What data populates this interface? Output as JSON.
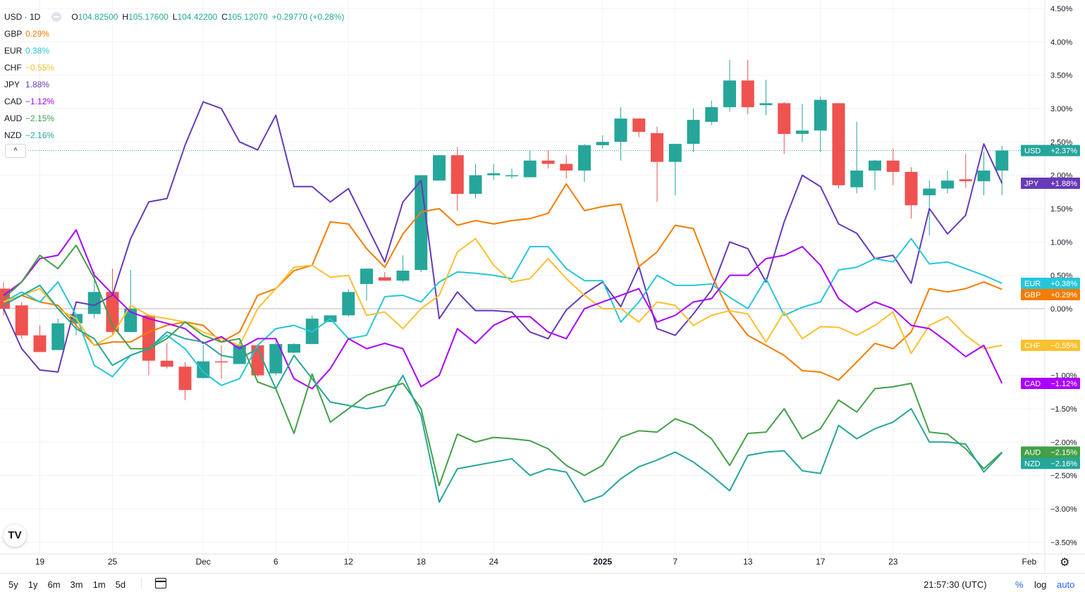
{
  "header": {
    "symbol": "USD · 1D",
    "ohlc": [
      {
        "k": "O",
        "v": "104.82500"
      },
      {
        "k": "H",
        "v": "105.17600"
      },
      {
        "k": "L",
        "v": "104.42200"
      },
      {
        "k": "C",
        "v": "105.12070"
      }
    ],
    "change": "+0.29770 (+0.28%)",
    "change_color": "#22ab94"
  },
  "compare": [
    {
      "name": "GBP",
      "value": "0.29%",
      "color": "#f57c00"
    },
    {
      "name": "EUR",
      "value": "0.38%",
      "color": "#26c6da"
    },
    {
      "name": "CHF",
      "value": "−0.55%",
      "color": "#fbc02d"
    },
    {
      "name": "JPY",
      "value": "1.88%",
      "color": "#673ab7"
    },
    {
      "name": "CAD",
      "value": "−1.12%",
      "color": "#aa00ff"
    },
    {
      "name": "AUD",
      "value": "−2.15%",
      "color": "#43a047"
    },
    {
      "name": "NZD",
      "value": "−2.16%",
      "color": "#26a69a"
    }
  ],
  "bottom_bar": {
    "ranges": [
      "5y",
      "1y",
      "6m",
      "3m",
      "1m",
      "5d"
    ],
    "time": "21:57:30 (UTC)",
    "pct": "%",
    "log": "log",
    "auto": "auto",
    "logo": "TV",
    "collapse": "^"
  },
  "chart_data": {
    "type": "candlestick",
    "xlabel": "",
    "ylabel": "",
    "y_axis_ticks": [
      "4.50%",
      "4.00%",
      "3.50%",
      "3.00%",
      "2.50%",
      "2.00%",
      "1.50%",
      "1.00%",
      "0.50%",
      "0.00%",
      "−0.50%",
      "−1.00%",
      "−1.50%",
      "−2.00%",
      "−2.50%",
      "−3.00%",
      "−3.50%"
    ],
    "y_range": [
      -3.55,
      4.5
    ],
    "x_tick_labels": [
      {
        "i": 2,
        "label": "19"
      },
      {
        "i": 6,
        "label": "25"
      },
      {
        "i": 11,
        "label": "Dec"
      },
      {
        "i": 15,
        "label": "6"
      },
      {
        "i": 19,
        "label": "12"
      },
      {
        "i": 23,
        "label": "18"
      },
      {
        "i": 27,
        "label": "24"
      },
      {
        "i": 33,
        "label": "2025"
      },
      {
        "i": 37,
        "label": "7"
      },
      {
        "i": 41,
        "label": "13"
      },
      {
        "i": 45,
        "label": "17"
      },
      {
        "i": 49,
        "label": "23"
      },
      {
        "i": 56.5,
        "label": "Feb"
      }
    ],
    "bold_ticks": [
      "2025"
    ],
    "candles": [
      [
        0.3,
        0.4,
        -0.1,
        0.0
      ],
      [
        0.05,
        0.1,
        -0.45,
        -0.4
      ],
      [
        -0.4,
        -0.25,
        -0.65,
        -0.65
      ],
      [
        -0.62,
        -0.15,
        -0.62,
        -0.22
      ],
      [
        -0.22,
        -0.1,
        -0.4,
        -0.08
      ],
      [
        -0.08,
        0.55,
        -0.15,
        0.25
      ],
      [
        0.25,
        0.6,
        -0.4,
        -0.35
      ],
      [
        -0.35,
        0.58,
        -0.3,
        0.0
      ],
      [
        -0.1,
        -0.15,
        -1.0,
        -0.78
      ],
      [
        -0.78,
        -0.52,
        -0.9,
        -0.87
      ],
      [
        -0.87,
        -0.8,
        -1.37,
        -1.22
      ],
      [
        -1.04,
        -0.55,
        -1.05,
        -0.79
      ],
      [
        -0.79,
        -0.55,
        -1.05,
        -0.8
      ],
      [
        -0.83,
        -0.5,
        -0.82,
        -0.55
      ],
      [
        -0.55,
        -0.55,
        -1.02,
        -1.0
      ],
      [
        -0.97,
        -0.45,
        -1.0,
        -0.53
      ],
      [
        -0.66,
        -0.52,
        -0.67,
        -0.53
      ],
      [
        -0.53,
        -0.1,
        -0.53,
        -0.15
      ],
      [
        -0.2,
        -0.1,
        -0.2,
        -0.1
      ],
      [
        -0.1,
        0.29,
        -0.12,
        0.25
      ],
      [
        0.37,
        0.55,
        0.12,
        0.6
      ],
      [
        0.47,
        0.55,
        0.44,
        0.42
      ],
      [
        0.42,
        0.8,
        0.4,
        0.57
      ],
      [
        0.58,
        2.0,
        0.55,
        2.0
      ],
      [
        1.92,
        2.3,
        1.95,
        2.3
      ],
      [
        2.3,
        2.42,
        1.47,
        1.72
      ],
      [
        1.72,
        2.17,
        1.65,
        2.0
      ],
      [
        2.0,
        2.17,
        1.93,
        2.03
      ],
      [
        2.0,
        2.1,
        1.95,
        2.0
      ],
      [
        1.97,
        2.37,
        2.0,
        2.22
      ],
      [
        2.22,
        2.37,
        2.1,
        2.17
      ],
      [
        2.17,
        2.3,
        1.95,
        2.07
      ],
      [
        2.07,
        2.47,
        1.9,
        2.45
      ],
      [
        2.45,
        2.6,
        2.4,
        2.5
      ],
      [
        2.5,
        3.02,
        2.22,
        2.85
      ],
      [
        2.85,
        2.82,
        2.57,
        2.65
      ],
      [
        2.63,
        2.73,
        1.6,
        2.2
      ],
      [
        2.2,
        2.47,
        1.7,
        2.47
      ],
      [
        2.47,
        3.0,
        2.35,
        2.83
      ],
      [
        2.8,
        3.12,
        2.75,
        3.02
      ],
      [
        3.02,
        3.73,
        2.95,
        3.42
      ],
      [
        3.42,
        3.73,
        2.92,
        3.02
      ],
      [
        3.05,
        3.43,
        2.9,
        3.08
      ],
      [
        3.08,
        3.1,
        2.32,
        2.62
      ],
      [
        2.62,
        3.07,
        2.5,
        2.67
      ],
      [
        2.67,
        3.18,
        2.35,
        3.13
      ],
      [
        3.08,
        3.07,
        1.8,
        1.85
      ],
      [
        1.82,
        2.8,
        1.73,
        2.07
      ],
      [
        2.07,
        2.23,
        1.78,
        2.22
      ],
      [
        2.22,
        2.4,
        1.85,
        2.05
      ],
      [
        2.05,
        2.12,
        1.35,
        1.55
      ],
      [
        1.7,
        1.92,
        1.1,
        1.8
      ],
      [
        1.8,
        2.07,
        1.73,
        1.92
      ],
      [
        1.94,
        2.32,
        1.81,
        1.91
      ],
      [
        1.91,
        2.35,
        1.7,
        2.07
      ],
      [
        2.07,
        2.44,
        1.7,
        2.37
      ]
    ],
    "series": [
      {
        "name": "JPY",
        "color": "#673ab7",
        "values": [
          0.0,
          -0.6,
          -0.92,
          -0.95,
          0.1,
          0.05,
          0.2,
          1.05,
          1.6,
          1.65,
          2.45,
          3.1,
          3.0,
          2.5,
          2.38,
          2.9,
          1.83,
          1.83,
          1.6,
          1.8,
          1.25,
          0.7,
          1.6,
          1.92,
          -0.15,
          0.25,
          -0.03,
          -0.03,
          -0.05,
          -0.35,
          -0.45,
          -0.02,
          0.22,
          0.4,
          0.03,
          0.63,
          -0.3,
          -0.4,
          -0.08,
          0.28,
          1.0,
          0.9,
          0.4,
          1.3,
          2.0,
          1.83,
          1.27,
          1.13,
          0.75,
          0.8,
          0.38,
          1.5,
          1.12,
          1.4,
          2.47,
          1.88
        ]
      },
      {
        "name": "GBP",
        "color": "#f57c00",
        "values": [
          0.1,
          0.2,
          0.1,
          0.05,
          -0.25,
          -0.55,
          -0.5,
          -0.5,
          -0.35,
          -0.25,
          -0.2,
          -0.25,
          -0.5,
          -0.35,
          0.2,
          0.3,
          0.57,
          0.65,
          1.3,
          1.27,
          0.9,
          0.62,
          1.12,
          1.45,
          1.5,
          1.25,
          1.32,
          1.27,
          1.32,
          1.35,
          1.43,
          1.87,
          1.47,
          1.53,
          1.57,
          0.63,
          0.85,
          1.25,
          1.2,
          0.5,
          -0.05,
          -0.4,
          -0.55,
          -0.7,
          -0.93,
          -0.95,
          -1.07,
          -0.8,
          -0.52,
          -0.6,
          -0.35,
          0.3,
          0.25,
          0.3,
          0.4,
          0.29
        ]
      },
      {
        "name": "EUR",
        "color": "#26c6da",
        "values": [
          0.1,
          0.25,
          0.1,
          0.4,
          -0.1,
          -0.85,
          -1.02,
          -0.7,
          -0.6,
          -0.4,
          -0.6,
          -0.95,
          -1.15,
          -1.05,
          -0.55,
          -0.3,
          -0.25,
          -0.35,
          -0.15,
          -0.45,
          -0.4,
          0.18,
          0.2,
          0.1,
          0.4,
          0.55,
          0.53,
          0.5,
          0.45,
          0.93,
          0.93,
          0.6,
          0.42,
          0.42,
          -0.2,
          0.1,
          0.5,
          0.35,
          0.35,
          0.37,
          0.17,
          0.0,
          0.45,
          -0.1,
          0.02,
          0.1,
          0.58,
          0.62,
          0.75,
          0.7,
          1.05,
          0.67,
          0.7,
          0.6,
          0.5,
          0.38
        ]
      },
      {
        "name": "CHF",
        "color": "#fbc02d",
        "values": [
          0.1,
          0.2,
          0.3,
          0.0,
          -0.15,
          -0.55,
          -0.4,
          0.05,
          -0.1,
          -0.15,
          -0.2,
          -0.35,
          -0.45,
          -0.55,
          0.0,
          0.3,
          0.62,
          0.65,
          0.47,
          0.5,
          -0.1,
          -0.05,
          -0.3,
          0.0,
          0.2,
          0.85,
          1.05,
          0.65,
          0.4,
          0.45,
          0.75,
          0.45,
          0.2,
          0.0,
          0.0,
          -0.2,
          0.1,
          0.05,
          -0.25,
          -0.1,
          -0.03,
          -0.08,
          -0.5,
          -0.05,
          -0.45,
          -0.27,
          -0.28,
          -0.4,
          -0.25,
          -0.05,
          -0.67,
          -0.25,
          -0.12,
          -0.4,
          -0.6,
          -0.55
        ]
      },
      {
        "name": "CAD",
        "color": "#aa00ff",
        "values": [
          0.2,
          0.4,
          0.75,
          0.8,
          1.18,
          0.5,
          0.22,
          -0.05,
          -0.15,
          -0.22,
          -0.3,
          -0.52,
          -0.42,
          -0.6,
          -0.45,
          -0.45,
          -1.05,
          -1.2,
          -0.9,
          -0.45,
          -0.6,
          -0.52,
          -0.6,
          -1.17,
          -1.0,
          -0.3,
          -0.52,
          -0.25,
          -0.12,
          -0.12,
          -0.35,
          -0.45,
          0.0,
          0.1,
          0.2,
          0.3,
          -0.2,
          -0.1,
          0.1,
          0.15,
          0.5,
          0.5,
          0.75,
          0.8,
          0.93,
          0.65,
          0.15,
          -0.05,
          0.1,
          0.0,
          -0.25,
          -0.3,
          -0.5,
          -0.72,
          -0.55,
          -1.12
        ]
      },
      {
        "name": "AUD",
        "color": "#43a047",
        "values": [
          0.15,
          0.4,
          0.8,
          0.6,
          0.95,
          0.45,
          -0.25,
          -0.6,
          -0.6,
          -0.45,
          -0.2,
          -0.4,
          -0.5,
          -0.45,
          -1.1,
          -1.2,
          -1.87,
          -0.98,
          -1.7,
          -1.5,
          -1.3,
          -1.2,
          -1.12,
          -1.5,
          -2.65,
          -1.88,
          -2.0,
          -1.93,
          -1.95,
          -1.98,
          -2.1,
          -2.35,
          -2.5,
          -2.35,
          -1.93,
          -1.83,
          -1.85,
          -1.65,
          -1.75,
          -1.95,
          -2.35,
          -1.87,
          -1.85,
          -1.5,
          -1.95,
          -1.8,
          -1.37,
          -1.55,
          -1.2,
          -1.17,
          -1.12,
          -1.85,
          -1.88,
          -2.1,
          -2.4,
          -2.15
        ]
      },
      {
        "name": "NZD",
        "color": "#26a69a",
        "values": [
          0.05,
          0.2,
          0.35,
          0.0,
          -0.3,
          -0.45,
          -0.85,
          -0.7,
          -0.6,
          -0.35,
          -0.45,
          -0.5,
          -0.7,
          -0.75,
          -0.6,
          -1.2,
          -0.7,
          -1.05,
          -1.4,
          -1.45,
          -1.5,
          -1.45,
          -1.0,
          -1.6,
          -2.9,
          -2.4,
          -2.35,
          -2.3,
          -2.25,
          -2.5,
          -2.4,
          -2.45,
          -2.9,
          -2.8,
          -2.55,
          -2.37,
          -2.27,
          -2.15,
          -2.3,
          -2.5,
          -2.73,
          -2.2,
          -2.15,
          -2.13,
          -2.43,
          -2.47,
          -1.75,
          -1.95,
          -1.8,
          -1.7,
          -1.5,
          -2.0,
          -2.0,
          -2.03,
          -2.45,
          -2.16
        ]
      }
    ],
    "price_labels": [
      {
        "name": "USD",
        "text": "+2.37%",
        "value": 2.37,
        "color": "#26a69a"
      },
      {
        "name": "JPY",
        "text": "+1.88%",
        "value": 1.88,
        "color": "#673ab7"
      },
      {
        "name": "EUR",
        "text": "+0.38%",
        "value": 0.38,
        "color": "#26c6da"
      },
      {
        "name": "GBP",
        "text": "+0.29%",
        "value": 0.29,
        "color": "#f57c00"
      },
      {
        "name": "CHF",
        "text": "−0.55%",
        "value": -0.55,
        "color": "#fbc02d"
      },
      {
        "name": "CAD",
        "text": "−1.12%",
        "value": -1.12,
        "color": "#aa00ff"
      },
      {
        "name": "AUD",
        "text": "−2.15%",
        "value": -2.15,
        "color": "#43a047"
      },
      {
        "name": "NZD",
        "text": "−2.16%",
        "value": -2.16,
        "color": "#26a69a"
      }
    ],
    "up_color": "#26a69a",
    "down_color": "#ef5350"
  }
}
